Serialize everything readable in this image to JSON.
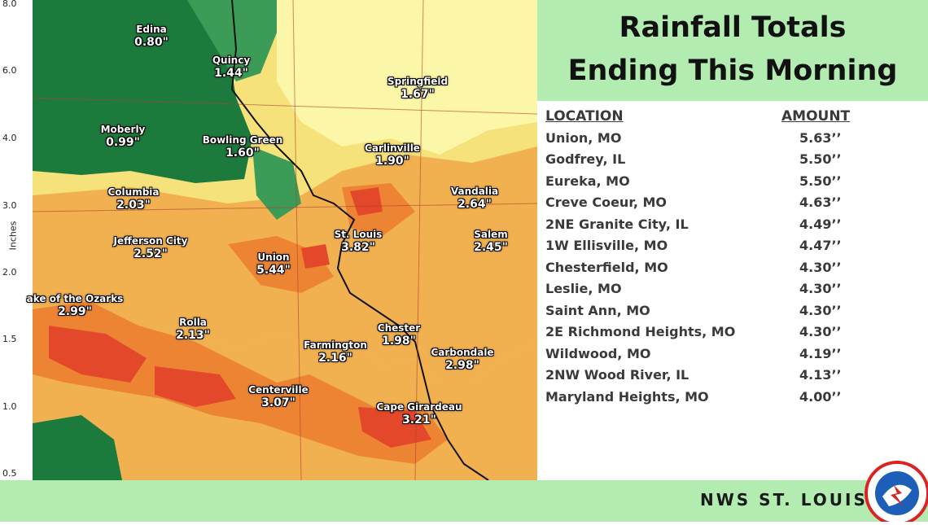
{
  "legend": {
    "ticks": [
      "8.0",
      "6.0",
      "4.0",
      "3.0",
      "2.0",
      "1.5",
      "1.0",
      "0.5"
    ],
    "unit": "Inches"
  },
  "colors": {
    "heavy_green": "#1d7a3d",
    "mid_green": "#3b9b57",
    "light_yellow": "#fbf6a8",
    "yellow": "#f6e27a",
    "orange": "#f1b150",
    "dark_orange": "#ec8434",
    "red": "#e4482b",
    "panel_green": "#b2ecb0"
  },
  "map": {
    "cities": [
      {
        "name": "Edina",
        "value": "0.80\""
      },
      {
        "name": "Quincy",
        "value": "1.44\""
      },
      {
        "name": "Springfield",
        "value": "1.67\""
      },
      {
        "name": "Moberly",
        "value": "0.99\""
      },
      {
        "name": "Bowling Green",
        "value": "1.60\""
      },
      {
        "name": "Carlinville",
        "value": "1.90\""
      },
      {
        "name": "Columbia",
        "value": "2.03\""
      },
      {
        "name": "Vandalia",
        "value": "2.64\""
      },
      {
        "name": "St. Louis",
        "value": "3.82\""
      },
      {
        "name": "Salem",
        "value": "2.45\""
      },
      {
        "name": "Jefferson City",
        "value": "2.52\""
      },
      {
        "name": "Union",
        "value": "5.44\""
      },
      {
        "name": "ake of the Ozarks",
        "value": "2.99\""
      },
      {
        "name": "Rolla",
        "value": "2.13\""
      },
      {
        "name": "Chester",
        "value": "1.98\""
      },
      {
        "name": "Farmington",
        "value": "2.16\""
      },
      {
        "name": "Carbondale",
        "value": "2.98\""
      },
      {
        "name": "Centerville",
        "value": "3.07\""
      },
      {
        "name": "Cape Girardeau",
        "value": "3.21\""
      }
    ]
  },
  "panel": {
    "title_line1": "Rainfall Totals",
    "title_line2": "Ending This Morning",
    "header_location": "LOCATION",
    "header_amount": "AMOUNT",
    "rows": [
      {
        "location": "Union, MO",
        "amount": "5.63’’"
      },
      {
        "location": "Godfrey, IL",
        "amount": "5.50’’"
      },
      {
        "location": "Eureka, MO",
        "amount": "5.50’’"
      },
      {
        "location": "Creve Coeur, MO",
        "amount": "4.63’’"
      },
      {
        "location": "2NE Granite City, IL",
        "amount": "4.49’’"
      },
      {
        "location": "1W Ellisville, MO",
        "amount": "4.47’’"
      },
      {
        "location": "Chesterfield, MO",
        "amount": "4.30’’"
      },
      {
        "location": "Leslie, MO",
        "amount": "4.30’’"
      },
      {
        "location": "Saint Ann, MO",
        "amount": "4.30’’"
      },
      {
        "location": "2E Richmond Heights, MO",
        "amount": "4.30’’"
      },
      {
        "location": "Wildwood, MO",
        "amount": "4.19’’"
      },
      {
        "location": "2NW Wood River, IL",
        "amount": "4.13’’"
      },
      {
        "location": "Maryland Heights, MO",
        "amount": "4.00’’"
      }
    ]
  },
  "footer": {
    "org": "NWS ST. LOUIS",
    "logo_icon": "nws-logo-icon"
  }
}
